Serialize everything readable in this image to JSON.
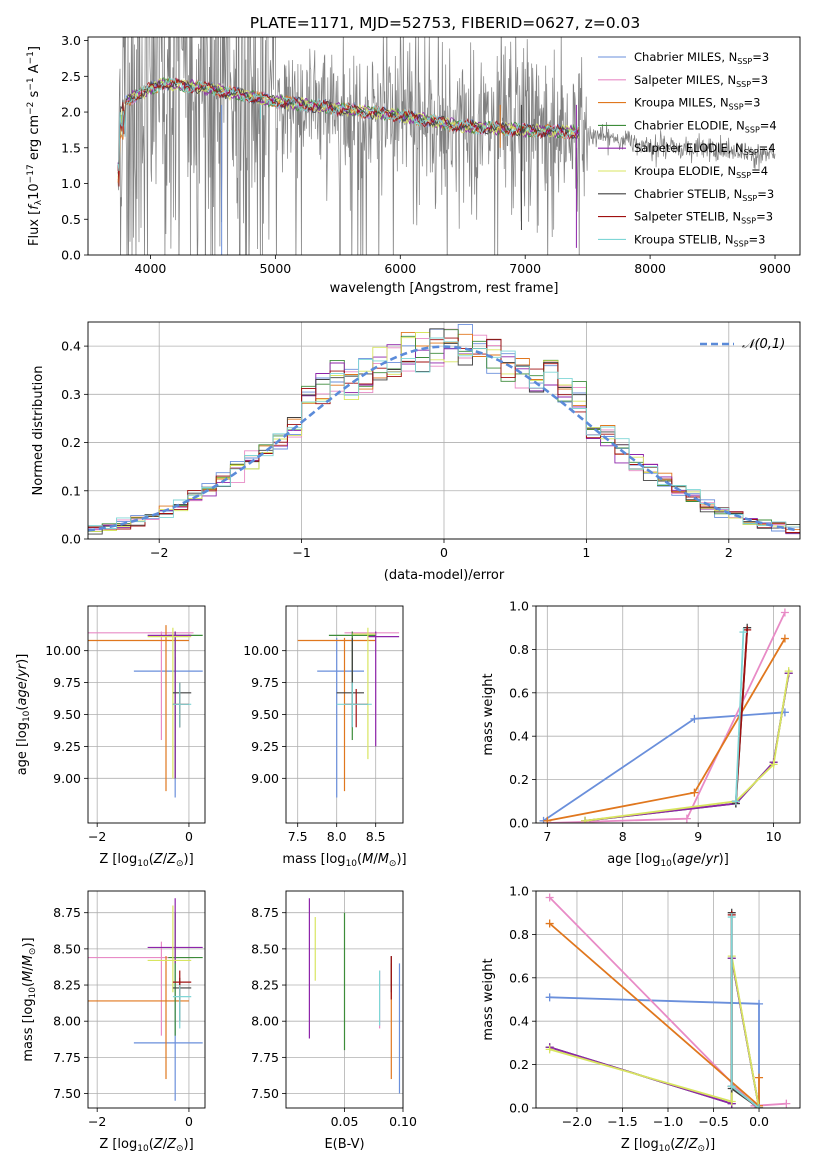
{
  "title": "PLATE=1171, MJD=52753, FIBERID=0627, z=0.03",
  "series": [
    {
      "name": "Chabrier MILES",
      "nssp": "3",
      "color": "#6a8fdb"
    },
    {
      "name": "Salpeter MILES",
      "nssp": "3",
      "color": "#e88bc6"
    },
    {
      "name": "Kroupa MILES",
      "nssp": "3",
      "color": "#e0771e"
    },
    {
      "name": "Chabrier ELODIE",
      "nssp": "4",
      "color": "#3d8c3a"
    },
    {
      "name": "Salpeter ELODIE",
      "nssp": "4",
      "color": "#8e24aa"
    },
    {
      "name": "Kroupa ELODIE",
      "nssp": "4",
      "color": "#d8e560"
    },
    {
      "name": "Chabrier STELIB",
      "nssp": "3",
      "color": "#404040"
    },
    {
      "name": "Salpeter STELIB",
      "nssp": "3",
      "color": "#a01010"
    },
    {
      "name": "Kroupa STELIB",
      "nssp": "3",
      "color": "#7fd6d6"
    }
  ],
  "chart_data": [
    {
      "id": "spectrum",
      "type": "line",
      "xlabel": "wavelength [Angstrom, rest frame]",
      "ylabel": "Flux [f_λ 10^-17 erg cm^-2 s^-1 A^-1]",
      "xlim": [
        3500,
        9200
      ],
      "ylim": [
        0,
        3.05
      ],
      "xticks": [
        4000,
        5000,
        6000,
        7000,
        8000,
        9000
      ],
      "yticks": [
        0.0,
        0.5,
        1.0,
        1.5,
        2.0,
        2.5,
        3.0
      ],
      "xticklabels": [
        "4000",
        "5000",
        "6000",
        "7000",
        "8000",
        "9000"
      ],
      "yticklabels": [
        "0.0",
        "0.5",
        "1.0",
        "1.5",
        "2.0",
        "2.5",
        "3.0"
      ],
      "data_range": [
        3740,
        9000
      ],
      "model_range": [
        3740,
        7430
      ],
      "continuum": [
        [
          3750,
          2.1
        ],
        [
          3900,
          2.25
        ],
        [
          4100,
          2.4
        ],
        [
          4400,
          2.35
        ],
        [
          4700,
          2.25
        ],
        [
          5000,
          2.15
        ],
        [
          5500,
          2.05
        ],
        [
          6000,
          1.95
        ],
        [
          6500,
          1.8
        ],
        [
          7000,
          1.75
        ],
        [
          7400,
          1.72
        ],
        [
          7800,
          1.6
        ],
        [
          8200,
          1.5
        ],
        [
          8600,
          1.45
        ],
        [
          9000,
          1.4
        ]
      ],
      "grid": false,
      "legend": "top-right"
    },
    {
      "id": "residuals",
      "type": "step",
      "xlabel": "(data-model)/error",
      "ylabel": "Normed distribution",
      "xlim": [
        -2.5,
        2.5
      ],
      "ylim": [
        0,
        0.45
      ],
      "xticks": [
        -2,
        -1,
        0,
        1,
        2
      ],
      "yticks": [
        0.0,
        0.1,
        0.2,
        0.3,
        0.4
      ],
      "xticklabels": [
        "−2",
        "−1",
        "0",
        "1",
        "2"
      ],
      "yticklabels": [
        "0.0",
        "0.1",
        "0.2",
        "0.3",
        "0.4"
      ],
      "bin_width": 0.1,
      "reference_label": "𝒩(0,1)",
      "reference_color": "#5b8bd9",
      "grid": true,
      "legend": "top-right"
    },
    {
      "id": "age-vs-Z",
      "type": "errorbar",
      "xlabel": "Z [log10(Z/Z⊙)]",
      "ylabel": "age [log10(age/yr)]",
      "xlim": [
        -2.2,
        0.35
      ],
      "ylim": [
        8.65,
        10.35
      ],
      "xticks": [
        -2,
        0
      ],
      "yticks": [
        9.0,
        9.25,
        9.5,
        9.75,
        10.0
      ],
      "xticklabels": [
        "−2",
        "0"
      ],
      "yticklabels": [
        "9.00",
        "9.25",
        "9.50",
        "9.75",
        "10.00"
      ],
      "points": [
        {
          "s": 0,
          "x": -0.3,
          "xe": [
            -1.2,
            0.3
          ],
          "y": 9.84,
          "ye": [
            8.85,
            9.95
          ]
        },
        {
          "s": 1,
          "x": -0.6,
          "xe": [
            -2.3,
            0.1
          ],
          "y": 10.14,
          "ye": [
            9.3,
            10.15
          ]
        },
        {
          "s": 2,
          "x": -0.5,
          "xe": [
            -2.3,
            0.0
          ],
          "y": 10.08,
          "ye": [
            8.9,
            10.2
          ]
        },
        {
          "s": 3,
          "x": -0.3,
          "xe": [
            -0.45,
            0.3
          ],
          "y": 10.12,
          "ye": [
            9.0,
            10.15
          ]
        },
        {
          "s": 4,
          "x": -0.3,
          "xe": [
            -0.9,
            0.05
          ],
          "y": 10.12,
          "ye": [
            9.0,
            10.15
          ]
        },
        {
          "s": 5,
          "x": -0.35,
          "xe": [
            -0.9,
            0.05
          ],
          "y": 10.11,
          "ye": [
            9.0,
            10.18
          ]
        },
        {
          "s": 6,
          "x": -0.2,
          "xe": [
            -0.35,
            0.05
          ],
          "y": 9.67,
          "ye": [
            9.4,
            9.75
          ]
        },
        {
          "s": 7,
          "x": -0.2,
          "xe": [
            -0.35,
            0.0
          ],
          "y": 9.58,
          "ye": [
            9.4,
            9.75
          ]
        },
        {
          "s": 8,
          "x": -0.2,
          "xe": [
            -0.35,
            0.05
          ],
          "y": 9.58,
          "ye": [
            9.4,
            9.75
          ]
        }
      ],
      "grid": true
    },
    {
      "id": "age-vs-mass",
      "type": "errorbar",
      "xlabel": "mass [log10(M/M⊙)]",
      "ylabel": "",
      "xlim": [
        7.35,
        8.85
      ],
      "ylim": [
        8.65,
        10.35
      ],
      "xticks": [
        7.5,
        8.0,
        8.5
      ],
      "yticks": [
        9.0,
        9.25,
        9.5,
        9.75,
        10.0
      ],
      "xticklabels": [
        "7.5",
        "8.0",
        "8.5"
      ],
      "yticklabels": [
        "9.00",
        "9.25",
        "9.50",
        "9.75",
        "10.00"
      ],
      "points": [
        {
          "s": 0,
          "x": 8.0,
          "xe": [
            7.75,
            8.35
          ],
          "y": 9.84,
          "ye": [
            8.85,
            10.1
          ]
        },
        {
          "s": 1,
          "x": 8.2,
          "xe": [
            8.1,
            8.8
          ],
          "y": 10.14,
          "ye": [
            9.5,
            10.15
          ]
        },
        {
          "s": 2,
          "x": 8.1,
          "xe": [
            7.5,
            8.5
          ],
          "y": 10.08,
          "ye": [
            8.9,
            10.1
          ]
        },
        {
          "s": 3,
          "x": 8.2,
          "xe": [
            7.9,
            8.5
          ],
          "y": 10.12,
          "ye": [
            9.3,
            10.15
          ]
        },
        {
          "s": 4,
          "x": 8.5,
          "xe": [
            8.4,
            8.8
          ],
          "y": 10.11,
          "ye": [
            9.25,
            10.15
          ]
        },
        {
          "s": 5,
          "x": 8.4,
          "xe": [
            8.2,
            8.5
          ],
          "y": 10.13,
          "ye": [
            9.15,
            10.18
          ]
        },
        {
          "s": 6,
          "x": 8.2,
          "xe": [
            8.0,
            8.35
          ],
          "y": 9.67,
          "ye": [
            9.4,
            10.1
          ]
        },
        {
          "s": 7,
          "x": 8.25,
          "xe": [
            8.1,
            8.4
          ],
          "y": 9.58,
          "ye": [
            9.4,
            9.7
          ]
        },
        {
          "s": 8,
          "x": 8.2,
          "xe": [
            8.0,
            8.45
          ],
          "y": 9.58,
          "ye": [
            9.4,
            9.75
          ]
        }
      ],
      "grid": true
    },
    {
      "id": "mass-weight-vs-age",
      "type": "line",
      "xlabel": "age [log10(age/yr)]",
      "ylabel": "mass weight",
      "xlim": [
        6.85,
        10.35
      ],
      "ylim": [
        0,
        1.0
      ],
      "xticks": [
        7,
        8,
        9,
        10
      ],
      "yticks": [
        0.0,
        0.2,
        0.4,
        0.6,
        0.8,
        1.0
      ],
      "xticklabels": [
        "7",
        "8",
        "9",
        "10"
      ],
      "yticklabels": [
        "0.0",
        "0.2",
        "0.4",
        "0.6",
        "0.8",
        "1.0"
      ],
      "lines": [
        {
          "s": 0,
          "x": [
            6.95,
            8.95,
            10.15
          ],
          "y": [
            0.01,
            0.48,
            0.51
          ]
        },
        {
          "s": 1,
          "x": 7.0,
          "y": 0,
          "xs": [
            8.85,
            10.15
          ],
          "ys": [
            0.02,
            0.97
          ]
        },
        {
          "s": 2,
          "x": [
            7.0,
            8.95,
            10.15
          ],
          "y": [
            0.01,
            0.14,
            0.85
          ]
        },
        {
          "s": 3,
          "x": [
            7.5,
            9.5,
            10.0,
            10.2
          ],
          "y": [
            0.01,
            0.09,
            0.28,
            0.69
          ]
        },
        {
          "s": 4,
          "x": [
            7.5,
            9.5,
            10.0,
            10.2
          ],
          "y": [
            0.01,
            0.09,
            0.28,
            0.69
          ]
        },
        {
          "s": 5,
          "x": [
            7.5,
            9.5,
            10.0,
            10.2
          ],
          "y": [
            0.01,
            0.1,
            0.27,
            0.7
          ]
        },
        {
          "s": 6,
          "x": [
            9.5,
            9.65
          ],
          "y": [
            0.09,
            0.9
          ]
        },
        {
          "s": 7,
          "x": [
            9.5,
            9.65
          ],
          "y": [
            0.1,
            0.89
          ]
        },
        {
          "s": 8,
          "x": [
            9.5,
            9.6
          ],
          "y": [
            0.1,
            0.88
          ]
        }
      ],
      "grid": true
    },
    {
      "id": "mass-vs-Z",
      "type": "errorbar",
      "xlabel": "Z [log10(Z/Z⊙)]",
      "ylabel": "mass [log10(M/M⊙)]",
      "xlim": [
        -2.2,
        0.35
      ],
      "ylim": [
        7.4,
        8.9
      ],
      "xticks": [
        -2,
        0
      ],
      "yticks": [
        7.5,
        7.75,
        8.0,
        8.25,
        8.5,
        8.75
      ],
      "xticklabels": [
        "−2",
        "0"
      ],
      "yticklabels": [
        "7.50",
        "7.75",
        "8.00",
        "8.25",
        "8.50",
        "8.75"
      ],
      "points": [
        {
          "s": 0,
          "x": -0.3,
          "xe": [
            -1.2,
            0.3
          ],
          "y": 7.85,
          "ye": [
            7.45,
            8.4
          ]
        },
        {
          "s": 1,
          "x": -0.6,
          "xe": [
            -2.3,
            0.1
          ],
          "y": 8.44,
          "ye": [
            7.9,
            8.55
          ]
        },
        {
          "s": 2,
          "x": -0.5,
          "xe": [
            -2.3,
            0.0
          ],
          "y": 8.14,
          "ye": [
            7.6,
            8.45
          ]
        },
        {
          "s": 3,
          "x": -0.3,
          "xe": [
            -0.45,
            0.3
          ],
          "y": 8.44,
          "ye": [
            7.9,
            8.75
          ]
        },
        {
          "s": 4,
          "x": -0.3,
          "xe": [
            -0.9,
            0.3
          ],
          "y": 8.51,
          "ye": [
            8.4,
            8.85
          ]
        },
        {
          "s": 5,
          "x": -0.35,
          "xe": [
            -0.9,
            0.05
          ],
          "y": 8.42,
          "ye": [
            8.2,
            8.8
          ]
        },
        {
          "s": 6,
          "x": -0.2,
          "xe": [
            -0.35,
            0.05
          ],
          "y": 8.23,
          "ye": [
            8.0,
            8.3
          ]
        },
        {
          "s": 7,
          "x": -0.2,
          "xe": [
            -0.35,
            0.05
          ],
          "y": 8.27,
          "ye": [
            8.15,
            8.35
          ]
        },
        {
          "s": 8,
          "x": -0.2,
          "xe": [
            -0.35,
            0.05
          ],
          "y": 8.17,
          "ye": [
            7.95,
            8.25
          ]
        }
      ],
      "grid": true
    },
    {
      "id": "mass-vs-EBV",
      "type": "errorbar",
      "xlabel": "E(B-V)",
      "ylabel": "",
      "xlim": [
        0.0,
        0.1
      ],
      "ylim": [
        7.4,
        8.9
      ],
      "xticks": [
        0.05,
        0.1
      ],
      "yticks": [
        7.5,
        7.75,
        8.0,
        8.25,
        8.5,
        8.75
      ],
      "xticklabels": [
        "0.05",
        "0.10"
      ],
      "yticklabels": [
        "7.50",
        "7.75",
        "8.00",
        "8.25",
        "8.50",
        "8.75"
      ],
      "points": [
        {
          "s": 0,
          "x": 0.097,
          "xe": [
            0.097,
            0.097
          ],
          "y": 7.9,
          "ye": [
            7.5,
            8.4
          ]
        },
        {
          "s": 1,
          "x": 0.08,
          "xe": [
            0.08,
            0.08
          ],
          "y": 8.15,
          "ye": [
            7.95,
            8.35
          ]
        },
        {
          "s": 2,
          "x": 0.09,
          "xe": [
            0.09,
            0.09
          ],
          "y": 7.95,
          "ye": [
            7.6,
            8.4
          ]
        },
        {
          "s": 3,
          "x": 0.05,
          "xe": [
            0.05,
            0.05
          ],
          "y": 8.3,
          "ye": [
            7.8,
            8.75
          ]
        },
        {
          "s": 4,
          "x": 0.02,
          "xe": [
            0.02,
            0.02
          ],
          "y": 8.35,
          "ye": [
            7.88,
            8.85
          ]
        },
        {
          "s": 5,
          "x": 0.025,
          "xe": [
            0.025,
            0.025
          ],
          "y": 8.5,
          "ye": [
            8.28,
            8.72
          ]
        },
        {
          "s": 6,
          "x": 0.09,
          "xe": [
            0.09,
            0.09
          ],
          "y": 8.3,
          "ye": [
            8.2,
            8.45
          ]
        },
        {
          "s": 7,
          "x": 0.09,
          "xe": [
            0.09,
            0.09
          ],
          "y": 8.3,
          "ye": [
            8.15,
            8.45
          ]
        },
        {
          "s": 8,
          "x": 0.08,
          "xe": [
            0.08,
            0.08
          ],
          "y": 8.15,
          "ye": [
            7.97,
            8.35
          ]
        }
      ],
      "grid": true
    },
    {
      "id": "mass-weight-vs-Z",
      "type": "line",
      "xlabel": "Z [log10(Z/Z⊙)]",
      "ylabel": "mass weight",
      "xlim": [
        -2.45,
        0.45
      ],
      "ylim": [
        0,
        1.0
      ],
      "xticks": [
        -2.0,
        -1.5,
        -1.0,
        -0.5,
        0.0
      ],
      "yticks": [
        0.0,
        0.2,
        0.4,
        0.6,
        0.8,
        1.0
      ],
      "xticklabels": [
        "−2.0",
        "−1.5",
        "−1.0",
        "−0.5",
        "0.0"
      ],
      "yticklabels": [
        "0.0",
        "0.2",
        "0.4",
        "0.6",
        "0.8",
        "1.0"
      ],
      "lines": [
        {
          "s": 0,
          "x": [
            -2.3,
            0.0,
            0.0
          ],
          "y": [
            0.51,
            0.48,
            0.01
          ]
        },
        {
          "s": 1,
          "x": [
            -2.3,
            -0.05,
            0.3
          ],
          "y": [
            0.97,
            0.01,
            0.02
          ]
        },
        {
          "s": 2,
          "x": [
            -2.3,
            0.0,
            0.0
          ],
          "y": [
            0.85,
            0.01,
            0.14
          ]
        },
        {
          "s": 3,
          "x": [
            -2.3,
            -0.3,
            -0.3,
            0.0
          ],
          "y": [
            0.28,
            0.02,
            0.69,
            0.0
          ]
        },
        {
          "s": 4,
          "x": [
            -2.3,
            -0.3,
            -0.3,
            0.0
          ],
          "y": [
            0.28,
            0.02,
            0.69,
            0.0
          ]
        },
        {
          "s": 5,
          "x": [
            -2.3,
            -0.3,
            -0.3,
            0.0
          ],
          "y": [
            0.27,
            0.03,
            0.7,
            0.0
          ]
        },
        {
          "s": 6,
          "x": [
            -0.3,
            -0.3,
            0.0
          ],
          "y": [
            0.9,
            0.09,
            0.0
          ]
        },
        {
          "s": 7,
          "x": [
            -0.3,
            -0.3,
            0.0
          ],
          "y": [
            0.89,
            0.1,
            0.0
          ]
        },
        {
          "s": 8,
          "x": [
            -0.3,
            -0.3,
            0.0
          ],
          "y": [
            0.88,
            0.1,
            0.0
          ]
        }
      ],
      "grid": true
    }
  ]
}
